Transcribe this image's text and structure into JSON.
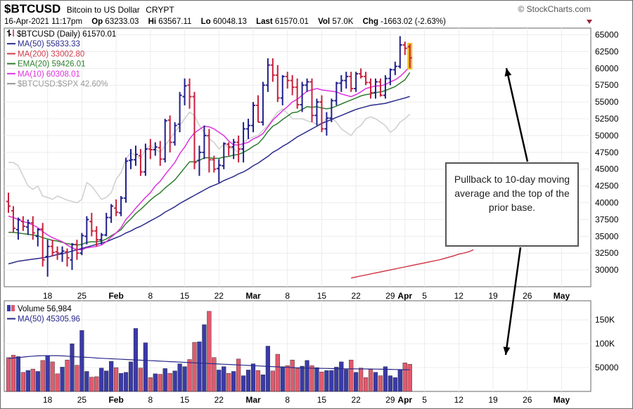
{
  "header": {
    "symbol": "$BTCUSD",
    "name": "Bitcoin to US Dollar",
    "exchange": "CRYPT",
    "brand": "© StockCharts.com",
    "date": "16-Apr-2021 11:17pm",
    "op_label": "Op",
    "op": "63233.03",
    "hi_label": "Hi",
    "hi": "63567.11",
    "lo_label": "Lo",
    "lo": "60048.13",
    "last_label": "Last",
    "last": "61570.01",
    "vol_label": "Vol",
    "vol": "57.0K",
    "chg_label": "Chg",
    "chg": "-1663.02 (-2.63%)"
  },
  "legend": [
    {
      "text": "$BTCUSD (Daily) 61570.01",
      "color": "#000000"
    },
    {
      "text": "MA(50) 55833.33",
      "color": "#2a2a8c"
    },
    {
      "text": "MA(200) 33002.80",
      "color": "#d23c4b"
    },
    {
      "text": "EMA(20) 59426.01",
      "color": "#2e7d2e"
    },
    {
      "text": "MA(10) 60308.01",
      "color": "#dd33dd"
    },
    {
      "text": "$BTCUSD:$SPX 42.60%",
      "color": "#9a9a9a"
    }
  ],
  "volume_legend": [
    {
      "text": "Volume 56,984",
      "color": "#000000"
    },
    {
      "text": "MA(50) 45305.96",
      "color": "#2a2a8c"
    }
  ],
  "annotation": "Pullback to 10-day moving average and the top of the prior base.",
  "colors": {
    "up": "#1f1f8c",
    "down": "#c8203c",
    "last": "#f0c020",
    "vol_up": "#3a3aa8",
    "vol_down": "#e05a6e"
  },
  "chart_data": [
    {
      "type": "bar",
      "title": "$BTCUSD Daily",
      "x_ticks": [
        {
          "idx": 8,
          "label": "18"
        },
        {
          "idx": 15,
          "label": "25"
        },
        {
          "idx": 22,
          "label": "Feb"
        },
        {
          "idx": 29,
          "label": "8"
        },
        {
          "idx": 36,
          "label": "15"
        },
        {
          "idx": 43,
          "label": "22"
        },
        {
          "idx": 50,
          "label": "Mar"
        },
        {
          "idx": 57,
          "label": "8"
        },
        {
          "idx": 64,
          "label": "15"
        },
        {
          "idx": 71,
          "label": "22"
        },
        {
          "idx": 78,
          "label": "29"
        },
        {
          "idx": 81,
          "label": "Apr"
        },
        {
          "idx": 85,
          "label": "5"
        },
        {
          "idx": 92,
          "label": "12"
        },
        {
          "idx": 99,
          "label": "19"
        },
        {
          "idx": 106,
          "label": "26"
        },
        {
          "idx": 113,
          "label": "May"
        }
      ],
      "ylim": [
        27500,
        66000
      ],
      "y_ticks": [
        30000,
        32500,
        35000,
        37500,
        40000,
        42500,
        45000,
        47500,
        50000,
        52500,
        55000,
        57500,
        60000,
        62500,
        65000
      ],
      "ohlc": [
        [
          40200,
          41500,
          38500,
          39500
        ],
        [
          38800,
          39500,
          35500,
          36200
        ],
        [
          36000,
          37800,
          34500,
          37500
        ],
        [
          37200,
          38000,
          35800,
          36500
        ],
        [
          36400,
          37500,
          35200,
          37000
        ],
        [
          37000,
          38000,
          34500,
          35500
        ],
        [
          35000,
          36200,
          33500,
          36000
        ],
        [
          36100,
          37000,
          30500,
          31500
        ],
        [
          32000,
          34500,
          29000,
          33500
        ],
        [
          33500,
          34500,
          32000,
          32600
        ],
        [
          32700,
          33500,
          31500,
          32500
        ],
        [
          32500,
          33500,
          31200,
          32800
        ],
        [
          32700,
          33200,
          30500,
          31800
        ],
        [
          31500,
          34000,
          30000,
          33800
        ],
        [
          33800,
          34500,
          31500,
          32500
        ],
        [
          32500,
          35500,
          32200,
          35100
        ],
        [
          35000,
          38000,
          33800,
          37500
        ],
        [
          37200,
          38500,
          35000,
          35800
        ],
        [
          35800,
          36500,
          33500,
          34500
        ],
        [
          34500,
          35500,
          33800,
          35200
        ],
        [
          35200,
          38500,
          35000,
          37800
        ],
        [
          37800,
          39800,
          37000,
          39500
        ],
        [
          39200,
          40500,
          38000,
          38600
        ],
        [
          38500,
          41000,
          38000,
          40700
        ],
        [
          40700,
          46700,
          40000,
          46200
        ],
        [
          46300,
          48000,
          45000,
          46400
        ],
        [
          46400,
          48500,
          45500,
          47200
        ],
        [
          47000,
          48000,
          44000,
          44600
        ],
        [
          44600,
          48800,
          44000,
          48000
        ],
        [
          48000,
          49500,
          46500,
          47900
        ],
        [
          47900,
          49000,
          47000,
          48300
        ],
        [
          48200,
          49200,
          45500,
          46500
        ],
        [
          46500,
          52500,
          46000,
          52200
        ],
        [
          52300,
          53000,
          47500,
          49000
        ],
        [
          49000,
          52000,
          48500,
          51500
        ],
        [
          51700,
          56500,
          50500,
          56000
        ],
        [
          55800,
          58500,
          54500,
          57400
        ],
        [
          57500,
          58500,
          54000,
          55800
        ],
        [
          55800,
          56500,
          45000,
          46000
        ],
        [
          46300,
          48500,
          44000,
          47500
        ],
        [
          47500,
          51500,
          46500,
          50000
        ],
        [
          50000,
          51000,
          44500,
          46400
        ],
        [
          46400,
          47000,
          44500,
          45000
        ],
        [
          45100,
          46500,
          43000,
          45600
        ],
        [
          45500,
          49000,
          45000,
          48800
        ],
        [
          48700,
          49000,
          47000,
          48300
        ],
        [
          48300,
          49500,
          46500,
          49000
        ],
        [
          49000,
          50000,
          46000,
          48000
        ],
        [
          48000,
          52000,
          46000,
          51000
        ],
        [
          51000,
          52500,
          49500,
          51500
        ],
        [
          51500,
          55000,
          50500,
          54500
        ],
        [
          54500,
          56000,
          52000,
          52000
        ],
        [
          52000,
          58000,
          51500,
          57500
        ],
        [
          57500,
          61500,
          56500,
          60500
        ],
        [
          60500,
          61500,
          58000,
          59000
        ],
        [
          59000,
          60500,
          55000,
          55600
        ],
        [
          55600,
          59000,
          54500,
          58800
        ],
        [
          58800,
          59500,
          57000,
          58200
        ],
        [
          58200,
          59000,
          56000,
          57200
        ],
        [
          57200,
          58500,
          54000,
          54600
        ],
        [
          54600,
          58000,
          53500,
          57500
        ],
        [
          57500,
          58500,
          56500,
          58000
        ],
        [
          58000,
          58500,
          52000,
          53000
        ],
        [
          53000,
          55500,
          51500,
          55000
        ],
        [
          55000,
          56000,
          50500,
          51000
        ],
        [
          51000,
          53500,
          50000,
          52600
        ],
        [
          52600,
          55500,
          52000,
          55200
        ],
        [
          55200,
          58000,
          54500,
          57800
        ],
        [
          57800,
          59000,
          56500,
          58200
        ],
        [
          58200,
          59500,
          57000,
          58800
        ],
        [
          58800,
          59500,
          56500,
          57000
        ],
        [
          57000,
          59500,
          56500,
          59200
        ],
        [
          59200,
          60000,
          58500,
          58800
        ],
        [
          58800,
          59500,
          57500,
          57900
        ],
        [
          57900,
          58500,
          55500,
          56400
        ],
        [
          56400,
          58500,
          55500,
          58000
        ],
        [
          58000,
          58500,
          55800,
          56000
        ],
        [
          56000,
          59000,
          55500,
          58500
        ],
        [
          58500,
          60000,
          57500,
          59800
        ],
        [
          59800,
          61000,
          59000,
          60300
        ],
        [
          60300,
          64800,
          60000,
          63500
        ],
        [
          63500,
          64000,
          62000,
          63000
        ],
        [
          63230,
          63600,
          60050,
          61570
        ]
      ],
      "ma10": [
        38000,
        37800,
        37500,
        37200,
        37000,
        36700,
        36300,
        35700,
        35200,
        34800,
        34500,
        34200,
        33700,
        33300,
        33000,
        33000,
        33300,
        33400,
        33500,
        33700,
        34200,
        34900,
        35500,
        36300,
        37500,
        38300,
        39200,
        40000,
        40800,
        41500,
        42500,
        43200,
        44200,
        45100,
        46000,
        47300,
        48300,
        49500,
        50400,
        50900,
        51400,
        51300,
        51000,
        50500,
        50000,
        49200,
        48600,
        48600,
        48800,
        49000,
        49500,
        49800,
        50300,
        51300,
        52300,
        53000,
        53700,
        54300,
        55000,
        55400,
        56000,
        56600,
        56800,
        57000,
        56800,
        56700,
        56600,
        56500,
        56200,
        56000,
        55800,
        56100,
        56500,
        57000,
        57200,
        57400,
        57400,
        57600,
        58000,
        58300,
        58800,
        59500,
        60300
      ],
      "ema20": [
        35600,
        35600,
        35500,
        35400,
        35300,
        35200,
        35100,
        34800,
        34600,
        34400,
        34300,
        34100,
        33900,
        33800,
        33700,
        33800,
        34100,
        34200,
        34200,
        34300,
        34600,
        35100,
        35500,
        36000,
        36900,
        37600,
        38400,
        39000,
        39700,
        40400,
        41000,
        41500,
        42200,
        42800,
        43400,
        44300,
        45200,
        46100,
        46100,
        46300,
        46700,
        46700,
        46600,
        46600,
        46800,
        46900,
        47100,
        47200,
        47500,
        47900,
        48400,
        48800,
        49600,
        50600,
        51400,
        51800,
        52400,
        52900,
        53400,
        53500,
        53900,
        54300,
        54200,
        54300,
        54100,
        54000,
        54100,
        54400,
        54700,
        55000,
        55300,
        55600,
        55900,
        56100,
        56200,
        56400,
        56500,
        56700,
        57000,
        57300,
        57800,
        58300,
        59400
      ],
      "ma50": [
        30900,
        31100,
        31300,
        31400,
        31500,
        31600,
        31700,
        31800,
        31900,
        32100,
        32300,
        32400,
        32600,
        32800,
        33000,
        33200,
        33400,
        33600,
        33800,
        34000,
        34200,
        34500,
        34800,
        35100,
        35500,
        35800,
        36200,
        36500,
        36900,
        37300,
        37700,
        38100,
        38600,
        39000,
        39400,
        39900,
        40300,
        40700,
        41100,
        41500,
        41900,
        42300,
        42600,
        42900,
        43300,
        43600,
        43900,
        44300,
        44600,
        45000,
        45500,
        45900,
        46400,
        46900,
        47500,
        47900,
        48400,
        48800,
        49300,
        49800,
        50200,
        50600,
        51000,
        51400,
        51800,
        52100,
        52400,
        52700,
        53000,
        53300,
        53600,
        53900,
        54100,
        54300,
        54500,
        54600,
        54700,
        54800,
        55000,
        55200,
        55400,
        55600,
        55830
      ],
      "ma200_start_idx": 70,
      "ma200": [
        28800,
        28950,
        29100,
        29250,
        29400,
        29550,
        29700,
        29850,
        30000,
        30150,
        30300,
        30450,
        30600,
        30750,
        30900,
        31050,
        31200,
        31350,
        31500,
        31700,
        31900,
        32100,
        32350,
        32500,
        32700,
        33000
      ],
      "ratio_overlay": [
        46000,
        46000,
        45500,
        44000,
        42500,
        42000,
        42500,
        41000,
        40800,
        40500,
        41000,
        40700,
        40400,
        40200,
        40000,
        40500,
        43000,
        42500,
        41500,
        40500,
        40800,
        41500,
        43500,
        44500,
        46500,
        47500,
        47000,
        46500,
        48000,
        48500,
        48000,
        47500,
        48500,
        49500,
        50500,
        51500,
        52500,
        53500,
        53000,
        51500,
        50500,
        49500,
        49000,
        48000,
        48700,
        48200,
        48000,
        47500,
        49000,
        49500,
        49800,
        50000,
        50800,
        51500,
        52500,
        53500,
        54000,
        53300,
        52500,
        52500,
        52500,
        52200,
        52000,
        51700,
        51800,
        52500,
        52600,
        52000,
        51000,
        50500,
        50000,
        51000,
        51500,
        52500,
        52800,
        52500,
        52000,
        51500,
        50500,
        51000,
        52000,
        52500,
        53200
      ],
      "ratio_overlay_last": 42.6
    },
    {
      "type": "bar",
      "title": "Volume",
      "ylim": [
        0,
        190000
      ],
      "y_ticks": [
        50000,
        100000,
        150000
      ],
      "y_tick_labels": [
        "50000",
        "100K",
        "150K"
      ],
      "volume": [
        71000,
        76000,
        73000,
        40000,
        44000,
        47000,
        42000,
        65000,
        75000,
        62000,
        37000,
        51000,
        66000,
        100000,
        55000,
        128000,
        42000,
        30000,
        31000,
        49000,
        43000,
        63000,
        50000,
        38000,
        40000,
        62000,
        132000,
        49000,
        102000,
        29000,
        37000,
        36000,
        48000,
        38000,
        43000,
        58000,
        52000,
        67000,
        103000,
        104000,
        140000,
        168000,
        71000,
        45000,
        52000,
        38000,
        42000,
        68000,
        33000,
        45000,
        58000,
        44000,
        35000,
        95000,
        43000,
        78000,
        52000,
        54000,
        66000,
        48000,
        53000,
        65000,
        54000,
        50000,
        41000,
        44000,
        44000,
        51000,
        62000,
        46000,
        66000,
        40000,
        49000,
        29000,
        46000,
        40000,
        33000,
        52000,
        33000,
        29000,
        46000,
        60000,
        56984
      ],
      "volume_ma50": [
        69000,
        70000,
        71000,
        72000,
        73000,
        74000,
        74500,
        75000,
        75000,
        75000,
        75000,
        74500,
        74000,
        73000,
        72500,
        72000,
        71500,
        71000,
        70000,
        69500,
        69000,
        68500,
        68000,
        67500,
        67000,
        66500,
        66000,
        65500,
        65000,
        64500,
        64000,
        63500,
        63000,
        62500,
        62000,
        61500,
        61000,
        60500,
        60000,
        59500,
        59000,
        58500,
        58000,
        57500,
        57000,
        56500,
        56000,
        55500,
        55000,
        54500,
        54000,
        53500,
        53000,
        52500,
        52000,
        51500,
        51000,
        50500,
        50000,
        49500,
        49200,
        48900,
        48700,
        48500,
        48300,
        48100,
        47900,
        47700,
        47600,
        47500,
        47400,
        47300,
        47200,
        47100,
        47000,
        46800,
        46600,
        46400,
        46200,
        46000,
        45800,
        45500,
        45306
      ]
    }
  ]
}
